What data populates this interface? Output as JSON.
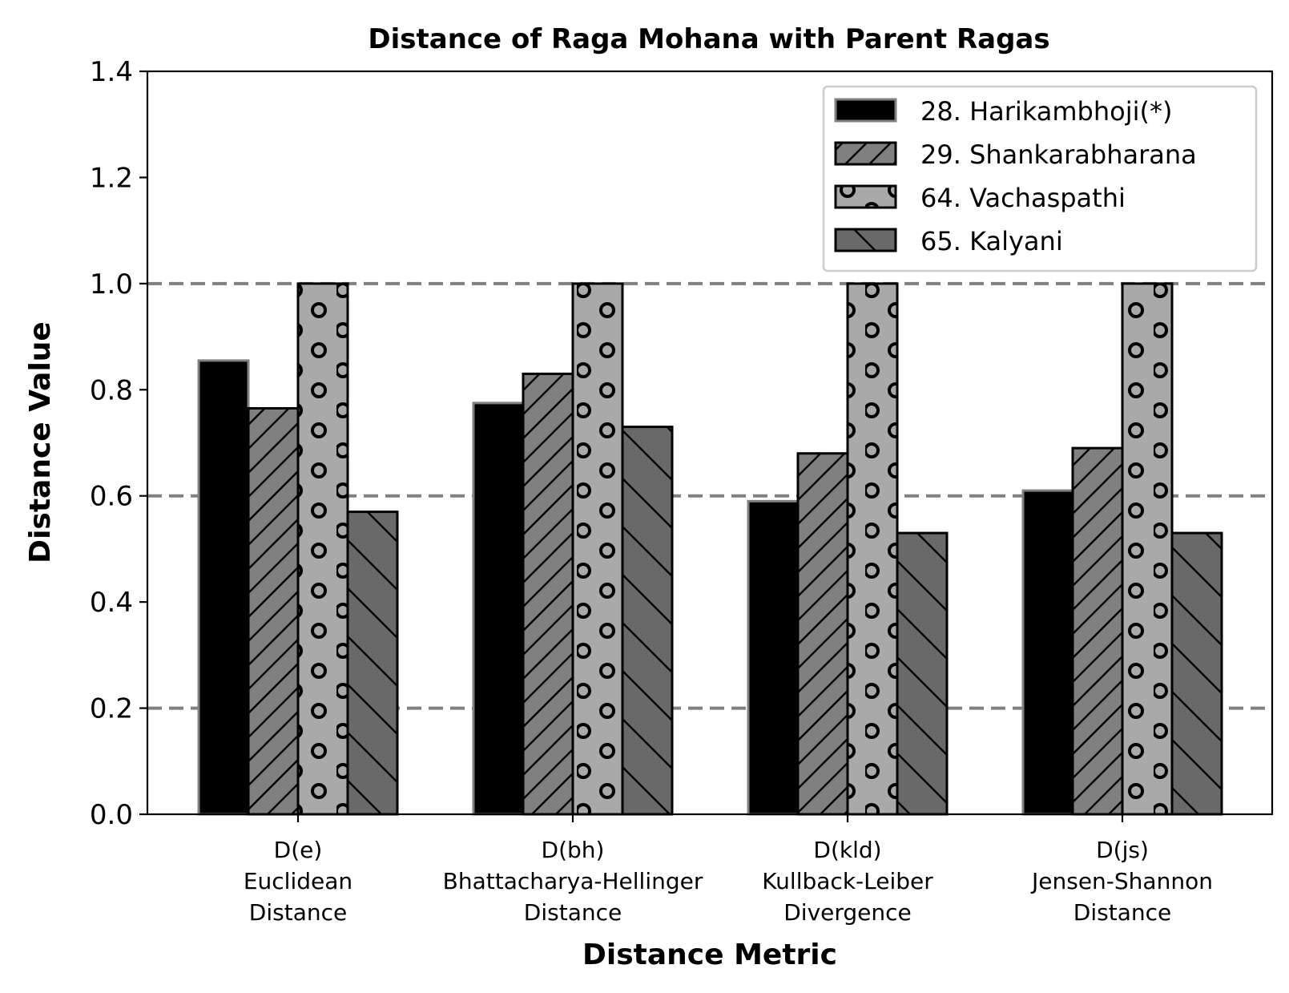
{
  "chart_data": {
    "type": "bar",
    "title": "Distance of Raga Mohana with Parent Ragas",
    "xlabel": "Distance Metric",
    "ylabel": "Distance Value",
    "ylim": [
      0,
      1.4
    ],
    "yticks": [
      "0.0",
      "0.2",
      "0.4",
      "0.6",
      "0.8",
      "1.0",
      "1.2",
      "1.4"
    ],
    "reference_lines": [
      0.2,
      0.6,
      1.0
    ],
    "legend_position": "top-right",
    "categories": [
      [
        "D(e)",
        "Euclidean",
        "Distance"
      ],
      [
        "D(bh)",
        "Bhattacharya-Hellinger",
        "Distance"
      ],
      [
        "D(kld)",
        "Kullback-Leiber",
        "Divergence"
      ],
      [
        "D(js)",
        "Jensen-Shannon",
        "Distance"
      ]
    ],
    "series": [
      {
        "name": "28. Harikambhoji(*)",
        "values": [
          0.855,
          0.775,
          0.59,
          0.61
        ],
        "color": "#000000",
        "edge": "#808080",
        "pattern": "solid"
      },
      {
        "name": "29. Shankarabharana",
        "values": [
          0.765,
          0.83,
          0.68,
          0.69
        ],
        "color": "#808080",
        "edge": "#000000",
        "pattern": "forward-diagonal"
      },
      {
        "name": "64. Vachaspathi",
        "values": [
          1.0,
          1.0,
          1.0,
          1.0
        ],
        "color": "#a9a9a9",
        "edge": "#000000",
        "pattern": "circles"
      },
      {
        "name": "65. Kalyani",
        "values": [
          0.57,
          0.73,
          0.53,
          0.53
        ],
        "color": "#696969",
        "edge": "#000000",
        "pattern": "back-diagonal"
      }
    ]
  }
}
